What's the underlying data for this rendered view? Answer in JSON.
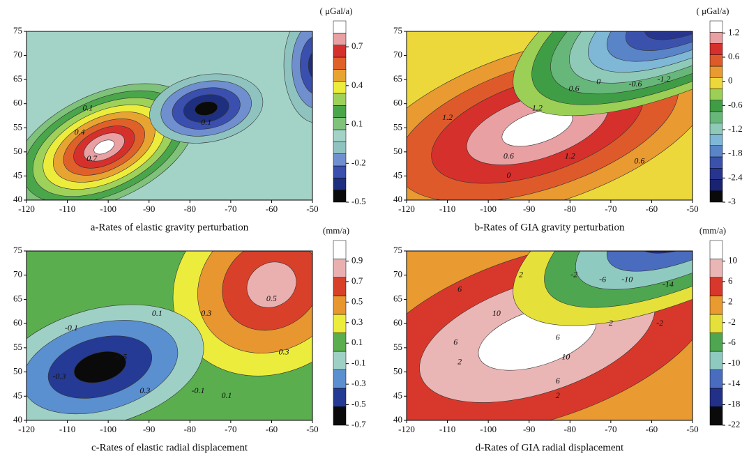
{
  "chart_data": [
    {
      "type": "contour",
      "caption": "a-Rates of elastic gravity perturbation",
      "unit": "( μGal/a)",
      "xlim": [
        -120,
        -50
      ],
      "xticks": [
        -120,
        -110,
        -100,
        -90,
        -80,
        -70,
        -60,
        -50
      ],
      "ylim": [
        40,
        75
      ],
      "yticks": [
        40,
        45,
        50,
        55,
        60,
        65,
        70,
        75
      ],
      "colorbar": {
        "lim": [
          -0.5,
          0.9
        ],
        "ticks": [
          0.7,
          0.4,
          0.1,
          -0.2,
          -0.5
        ],
        "colors": [
          "#0a0a0a",
          "#1e2f7f",
          "#3a4fae",
          "#6f8fcf",
          "#8fc3c0",
          "#a3d3c6",
          "#7fc27a",
          "#4aa64a",
          "#9ed15a",
          "#ecec3c",
          "#e8a431",
          "#e0602a",
          "#d6302c",
          "#e9a0a2",
          "#ffffff"
        ]
      },
      "contour_labels": [
        {
          "value": 0.1,
          "x": -105,
          "y": 59
        },
        {
          "value": 0.4,
          "x": -107,
          "y": 54
        },
        {
          "value": 0.7,
          "x": -104,
          "y": 48.5
        },
        {
          "value": 0.1,
          "x": -76,
          "y": 56
        }
      ]
    },
    {
      "type": "contour",
      "caption": "b-Rates of GIA gravity perturbation",
      "unit": "( μGal/a)",
      "xlim": [
        -120,
        -50
      ],
      "xticks": [
        -120,
        -110,
        -100,
        -90,
        -80,
        -70,
        -60,
        -50
      ],
      "ylim": [
        40,
        75
      ],
      "yticks": [
        40,
        45,
        50,
        55,
        60,
        65,
        70,
        75
      ],
      "colorbar": {
        "lim": [
          -3,
          1.5
        ],
        "ticks": [
          1.2,
          0.6,
          0,
          -0.6,
          -1.2,
          -1.8,
          -2.4,
          -3
        ],
        "colors": [
          "#0a0a0a",
          "#1a2370",
          "#28358f",
          "#3b52ad",
          "#5a84c8",
          "#7fb8d6",
          "#8fcab8",
          "#67b77a",
          "#3f9d45",
          "#9bcf55",
          "#ecd83a",
          "#e99a30",
          "#df5a2a",
          "#d5302c",
          "#e8a0a3",
          "#ffffff"
        ]
      },
      "contour_labels": [
        {
          "value": 0.6,
          "x": -79,
          "y": 63
        },
        {
          "value": 0,
          "x": -73,
          "y": 64.5
        },
        {
          "value": -0.6,
          "x": -64,
          "y": 64
        },
        {
          "value": -1.2,
          "x": -57,
          "y": 65
        },
        {
          "value": 1.2,
          "x": -88,
          "y": 59
        },
        {
          "value": 1.2,
          "x": -110,
          "y": 57
        },
        {
          "value": 0.6,
          "x": -95,
          "y": 49
        },
        {
          "value": 1.2,
          "x": -80,
          "y": 49
        },
        {
          "value": 0.6,
          "x": -63,
          "y": 48
        },
        {
          "value": 0,
          "x": -95,
          "y": 45
        }
      ]
    },
    {
      "type": "contour",
      "caption": "c-Rates of elastic radial displacement",
      "unit": "(mm/a)",
      "xlim": [
        -120,
        -50
      ],
      "xticks": [
        -120,
        -110,
        -100,
        -90,
        -80,
        -70,
        -60,
        -50
      ],
      "ylim": [
        40,
        75
      ],
      "yticks": [
        40,
        45,
        50,
        55,
        60,
        65,
        70,
        75
      ],
      "colorbar": {
        "lim": [
          -0.7,
          1.1
        ],
        "ticks": [
          0.9,
          0.7,
          0.5,
          0.3,
          0.1,
          -0.1,
          -0.3,
          -0.5,
          -0.7
        ],
        "colors": [
          "#0a0a0a",
          "#243a94",
          "#5a8fd0",
          "#9fd0c6",
          "#5aae4e",
          "#ecec3c",
          "#e8962f",
          "#d9402a",
          "#eab0b0",
          "#ffffff"
        ]
      },
      "contour_labels": [
        {
          "value": 0.1,
          "x": -88,
          "y": 62
        },
        {
          "value": 0.3,
          "x": -76,
          "y": 62
        },
        {
          "value": 0.5,
          "x": -60,
          "y": 65
        },
        {
          "value": -0.1,
          "x": -109,
          "y": 59
        },
        {
          "value": -0.5,
          "x": -97,
          "y": 53
        },
        {
          "value": -0.3,
          "x": -112,
          "y": 49
        },
        {
          "value": 0.3,
          "x": -91,
          "y": 46
        },
        {
          "value": -0.1,
          "x": -78,
          "y": 46
        },
        {
          "value": 0.1,
          "x": -71,
          "y": 45
        },
        {
          "value": 0.3,
          "x": -57,
          "y": 54
        }
      ]
    },
    {
      "type": "contour",
      "caption": "d-Rates of GIA radial displacement",
      "unit": "(mm/a)",
      "xlim": [
        -120,
        -50
      ],
      "xticks": [
        -120,
        -110,
        -100,
        -90,
        -80,
        -70,
        -60,
        -50
      ],
      "ylim": [
        40,
        75
      ],
      "yticks": [
        40,
        45,
        50,
        55,
        60,
        65,
        70,
        75
      ],
      "colorbar": {
        "lim": [
          -22,
          14
        ],
        "ticks": [
          10,
          6,
          2,
          -2,
          -6,
          -10,
          -14,
          -18,
          -22
        ],
        "colors": [
          "#0a0a0a",
          "#223088",
          "#4a6cbf",
          "#8fcac0",
          "#4ea650",
          "#e6e03a",
          "#e99a30",
          "#d8382b",
          "#eab5b5",
          "#ffffff"
        ]
      },
      "contour_labels": [
        {
          "value": 6,
          "x": -107,
          "y": 67
        },
        {
          "value": 2,
          "x": -92,
          "y": 70
        },
        {
          "value": -2,
          "x": -79,
          "y": 70
        },
        {
          "value": -6,
          "x": -72,
          "y": 69
        },
        {
          "value": -10,
          "x": -66,
          "y": 69
        },
        {
          "value": -14,
          "x": -56,
          "y": 68
        },
        {
          "value": 10,
          "x": -98,
          "y": 62
        },
        {
          "value": 6,
          "x": -83,
          "y": 57
        },
        {
          "value": 2,
          "x": -70,
          "y": 60
        },
        {
          "value": -2,
          "x": -58,
          "y": 60
        },
        {
          "value": 6,
          "x": -108,
          "y": 56
        },
        {
          "value": 2,
          "x": -107,
          "y": 52
        },
        {
          "value": 10,
          "x": -81,
          "y": 53
        },
        {
          "value": 6,
          "x": -83,
          "y": 48
        },
        {
          "value": 2,
          "x": -83,
          "y": 45
        }
      ]
    }
  ]
}
